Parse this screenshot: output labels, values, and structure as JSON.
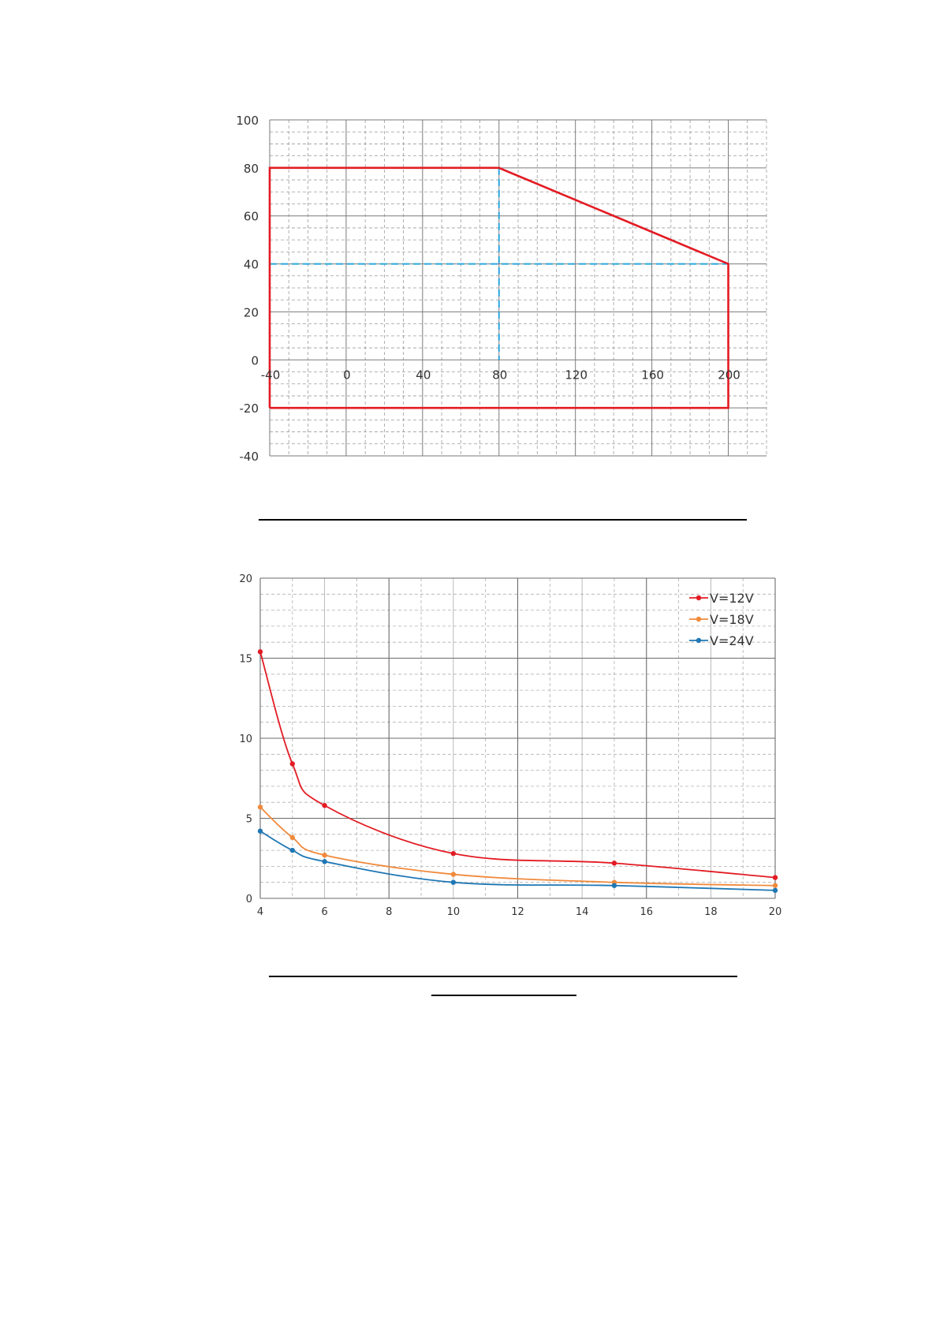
{
  "chart_data": [
    {
      "type": "line",
      "xlim": [
        -40,
        220
      ],
      "ylim": [
        -40,
        100
      ],
      "x_ticks": [
        -40,
        0,
        40,
        80,
        120,
        160,
        200
      ],
      "y_ticks": [
        100,
        80,
        60,
        40,
        20,
        0,
        -20,
        -40
      ],
      "x_tick_labels": [
        "-40",
        "0",
        "40",
        "80",
        "120",
        "160",
        "200"
      ],
      "y_tick_labels": [
        "100",
        "80",
        "60",
        "40",
        "20",
        "0",
        "-20",
        "-40"
      ],
      "grid": true,
      "colors": {
        "boundary": "#e31b23",
        "guide": "#2ba6de",
        "grid_major": "#7a7a7a",
        "grid_minor": "#9c9c9c"
      },
      "series": [
        {
          "style": "solid",
          "x": [
            -40,
            -40,
            80,
            200,
            200,
            -40
          ],
          "y": [
            -20,
            80,
            80,
            40,
            -20,
            -20
          ]
        },
        {
          "style": "dashed",
          "x": [
            80,
            80
          ],
          "y": [
            80,
            0
          ]
        },
        {
          "style": "dashed",
          "x": [
            -40,
            200
          ],
          "y": [
            40,
            40
          ]
        }
      ]
    },
    {
      "type": "line",
      "xlim": [
        4,
        20
      ],
      "ylim": [
        0,
        20
      ],
      "x_ticks": [
        4,
        6,
        8,
        10,
        12,
        14,
        16,
        18,
        20
      ],
      "y_ticks": [
        0,
        5,
        10,
        15,
        20
      ],
      "x_tick_labels": [
        "4",
        "6",
        "8",
        "10",
        "12",
        "14",
        "16",
        "18",
        "20"
      ],
      "y_tick_labels": [
        "0",
        "5",
        "10",
        "15",
        "20"
      ],
      "grid": true,
      "legend_position": "top-right",
      "series": [
        {
          "name": "V=12V",
          "color": "#e31b23",
          "x": [
            4,
            5,
            6,
            10,
            15,
            20
          ],
          "y": [
            15.4,
            8.4,
            5.8,
            2.8,
            2.2,
            1.3
          ]
        },
        {
          "name": "V=18V",
          "color": "#f08a3c",
          "x": [
            4,
            5,
            6,
            10,
            15,
            20
          ],
          "y": [
            5.7,
            3.8,
            2.7,
            1.5,
            1.0,
            0.8
          ]
        },
        {
          "name": "V=24V",
          "color": "#1f77b4",
          "x": [
            4,
            5,
            6,
            10,
            15,
            20
          ],
          "y": [
            4.2,
            3.0,
            2.3,
            1.0,
            0.8,
            0.5
          ]
        }
      ]
    }
  ]
}
